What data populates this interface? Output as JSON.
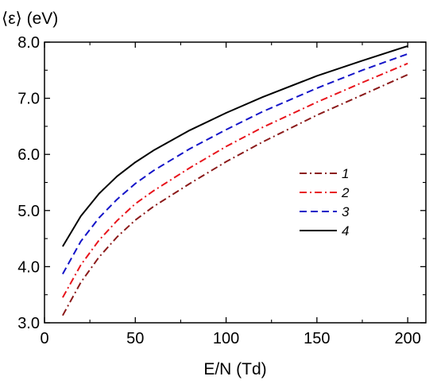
{
  "chart_data": {
    "type": "line",
    "title": "",
    "xlabel": "E/N (Td)",
    "ylabel": "⟨ε⟩ (eV)",
    "xlim": [
      0,
      210
    ],
    "ylim": [
      3.0,
      8.0
    ],
    "x_ticks": [
      0,
      50,
      100,
      150,
      200
    ],
    "x_tick_labels": [
      "0",
      "50",
      "100",
      "150",
      "200"
    ],
    "y_ticks": [
      3.0,
      4.0,
      5.0,
      6.0,
      7.0,
      8.0
    ],
    "y_tick_labels": [
      "3.0",
      "4.0",
      "5.0",
      "6.0",
      "7.0",
      "8.0"
    ],
    "grid": false,
    "legend_position": "right-center",
    "x": [
      10,
      20,
      30,
      40,
      50,
      60,
      80,
      100,
      120,
      150,
      175,
      200
    ],
    "series": [
      {
        "name": "1",
        "color": "#8b1a1a",
        "dash": "dash-dot",
        "values": [
          3.13,
          3.72,
          4.17,
          4.53,
          4.83,
          5.07,
          5.48,
          5.87,
          6.22,
          6.7,
          7.06,
          7.42
        ]
      },
      {
        "name": "2",
        "color": "#e8141c",
        "dash": "dash-dot",
        "values": [
          3.45,
          4.03,
          4.47,
          4.82,
          5.12,
          5.35,
          5.76,
          6.14,
          6.48,
          6.93,
          7.28,
          7.62
        ]
      },
      {
        "name": "3",
        "color": "#1414c8",
        "dash": "dash",
        "values": [
          3.87,
          4.45,
          4.87,
          5.2,
          5.48,
          5.71,
          6.1,
          6.44,
          6.76,
          7.18,
          7.5,
          7.79
        ]
      },
      {
        "name": "4",
        "color": "#000000",
        "dash": "solid",
        "values": [
          4.36,
          4.9,
          5.3,
          5.61,
          5.86,
          6.07,
          6.43,
          6.74,
          7.02,
          7.4,
          7.67,
          7.93
        ]
      }
    ]
  }
}
